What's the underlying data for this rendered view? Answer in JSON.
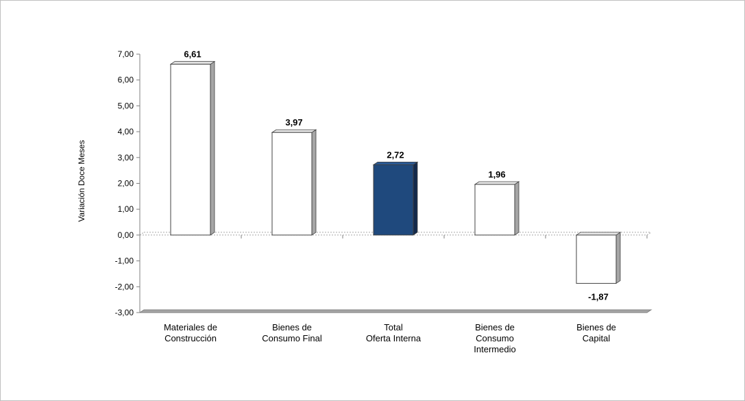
{
  "chart_data": {
    "type": "bar",
    "title": "",
    "ylabel": "Variación Doce Meses",
    "xlabel": "",
    "ylim": [
      -3,
      7
    ],
    "yticks": [
      "7,00",
      "6,00",
      "5,00",
      "4,00",
      "3,00",
      "2,00",
      "1,00",
      "0,00",
      "-1,00",
      "-2,00",
      "-3,00"
    ],
    "ytick_values": [
      7,
      6,
      5,
      4,
      3,
      2,
      1,
      0,
      -1,
      -2,
      -3
    ],
    "categories": [
      [
        "Materiales de",
        "Construcción"
      ],
      [
        "Bienes de",
        "Consumo Final"
      ],
      [
        "Total",
        "Oferta Interna"
      ],
      [
        "Bienes de",
        "Consumo",
        "Intermedio"
      ],
      [
        "Bienes de",
        "Capital"
      ]
    ],
    "values": [
      6.61,
      3.97,
      2.72,
      1.96,
      -1.87
    ],
    "value_labels": [
      "6,61",
      "3,97",
      "2,72",
      "1,96",
      "-1,87"
    ],
    "highlight_index": 2,
    "colors": {
      "bar": "#ffffff",
      "bar_highlight": "#1f497d",
      "bar_side": "#a6a6a6",
      "bar_side_highlight": "#13294b",
      "outline": "#404040",
      "floor": "#a6a6a6",
      "zero_line": "#a6a6a6"
    },
    "grid": false,
    "legend": "none"
  }
}
